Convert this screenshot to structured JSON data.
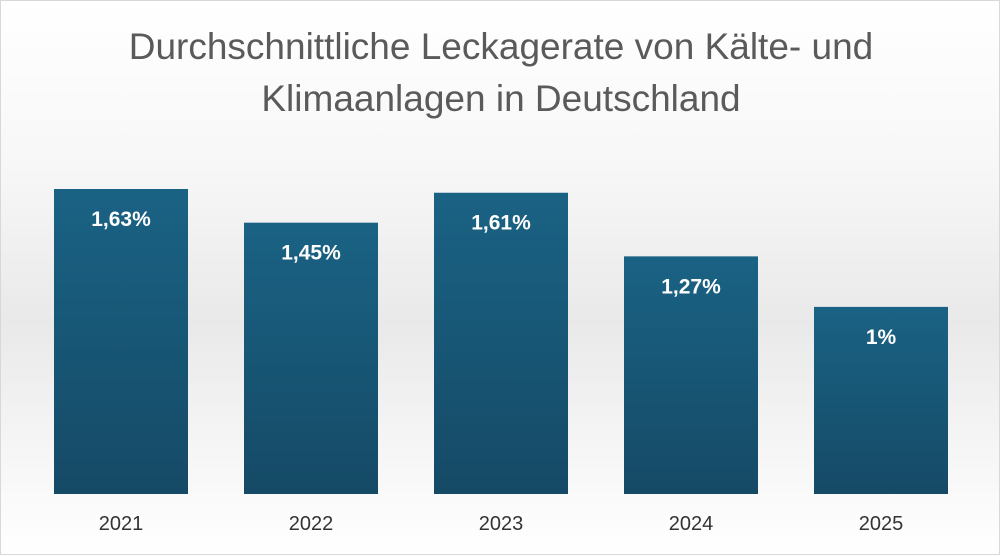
{
  "chart_data": {
    "type": "bar",
    "title": [
      "Durchschnittliche Leckagerate von Kälte- und",
      "Klimaanlagen in Deutschland"
    ],
    "categories": [
      "2021",
      "2022",
      "2023",
      "2024",
      "2025"
    ],
    "values": [
      1.63,
      1.45,
      1.61,
      1.27,
      1.0
    ],
    "data_labels": [
      "1,63%",
      "1,45%",
      "1,61%",
      "1,27%",
      "1%"
    ],
    "unit": "%",
    "xlabel": "",
    "ylabel": "",
    "ylim": [
      0,
      1.63
    ],
    "grid": false,
    "legend": "none",
    "colors": {
      "bar_top": "#1a6284",
      "bar_bottom": "#154a66",
      "label": "#ffffff",
      "title": "#5a5a5a",
      "tick": "#333333"
    }
  }
}
